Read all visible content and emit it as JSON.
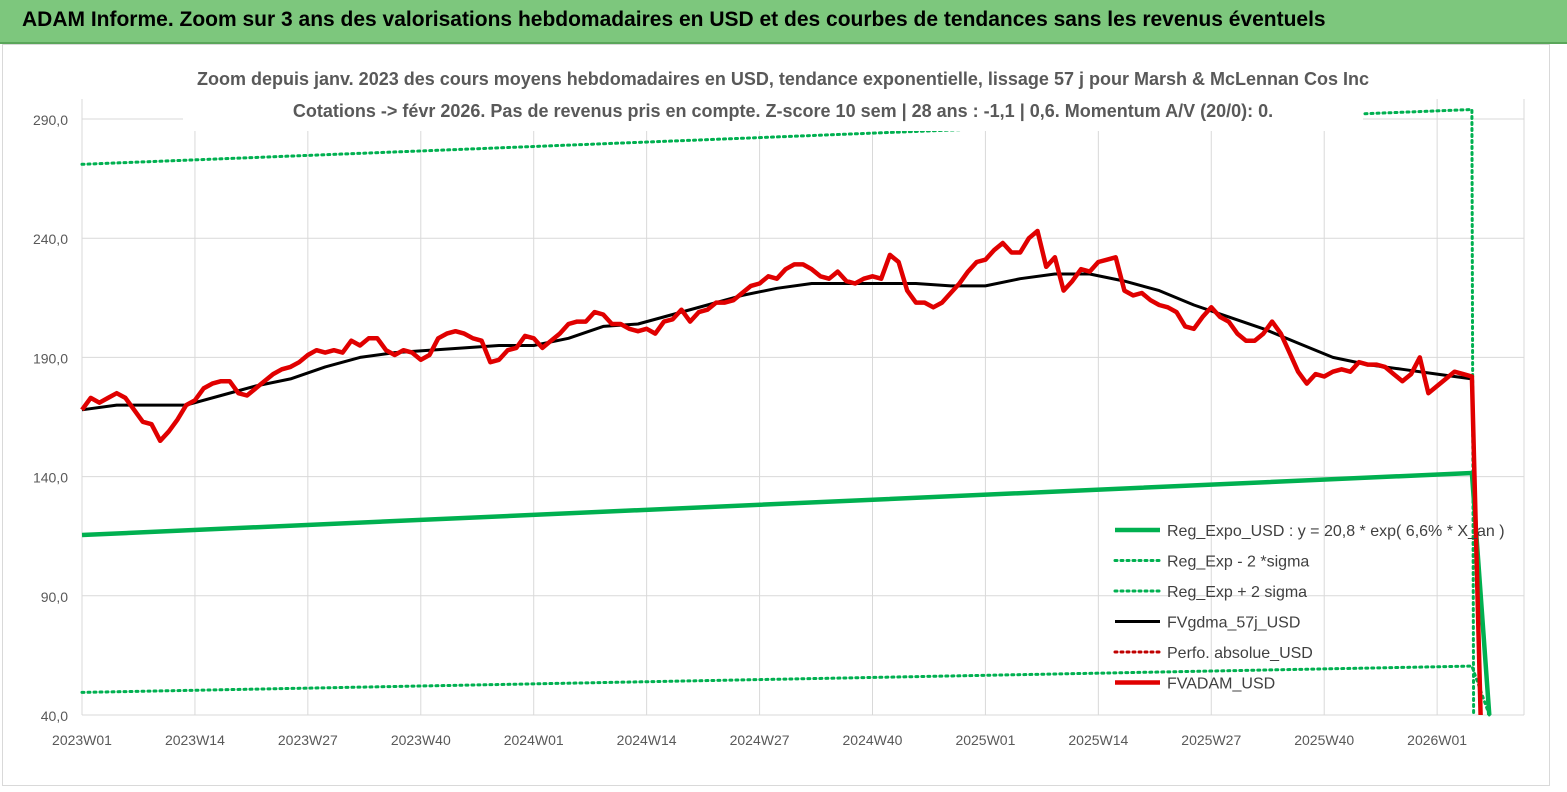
{
  "banner": {
    "title": "ADAM Informe. Zoom sur 3 ans des valorisations hebdomadaires en USD et des courbes de tendances sans les revenus éventuels"
  },
  "colors": {
    "banner_bg": "#7dc77d",
    "reg_expo": "#00b050",
    "fvgdma": "#000000",
    "fvadam": "#e00000",
    "perfo": "#c00000"
  },
  "chart_data": {
    "type": "line",
    "title": "Zoom depuis janv. 2023 des cours moyens hebdomadaires en USD, tendance exponentielle, lissage 57 j pour Marsh & McLennan Cos Inc",
    "subtitle": "Cotations -> févr 2026. Pas de revenus pris en compte. Z-score 10 sem  | 28 ans : -1,1 | 0,6. Momentum A/V (20/0): 0.",
    "xlabel": "",
    "ylabel": "",
    "ylim": [
      40,
      290
    ],
    "yticks": [
      "290,0",
      "240,0",
      "190,0",
      "140,0",
      "90,0",
      "40,0"
    ],
    "xticks": [
      "2023W01",
      "2023W14",
      "2023W27",
      "2023W40",
      "2024W01",
      "2024W14",
      "2024W27",
      "2024W40",
      "2025W01",
      "2025W14",
      "2025W27",
      "2025W40",
      "2026W01"
    ],
    "x_range_weeks": [
      0,
      166
    ],
    "grid": true,
    "legend_position": "bottom-right",
    "series": [
      {
        "name": "Reg_Expo_USD : y = 20,8 * exp( 6,6% *  X_an )",
        "style": "solid-thick",
        "color": "#00b050",
        "x": [
          0,
          160,
          162
        ],
        "y": [
          115.5,
          141.5,
          40
        ]
      },
      {
        "name": "Reg_Exp - 2 *sigma",
        "style": "dotted",
        "color": "#00b050",
        "x": [
          0,
          160,
          162
        ],
        "y": [
          49.5,
          60.5,
          40
        ]
      },
      {
        "name": "Reg_Exp + 2 sigma",
        "style": "dotted",
        "color": "#00b050",
        "x": [
          0,
          160,
          160.2
        ],
        "y": [
          271,
          299,
          40
        ]
      },
      {
        "name": "FVgdma_57j_USD",
        "style": "solid",
        "color": "#000000",
        "x": [
          0,
          4,
          8,
          12,
          16,
          20,
          24,
          28,
          32,
          36,
          40,
          44,
          48,
          52,
          56,
          60,
          64,
          68,
          72,
          76,
          80,
          84,
          88,
          92,
          96,
          100,
          104,
          108,
          112,
          116,
          120,
          124,
          128,
          132,
          136,
          140,
          144,
          148,
          152,
          156,
          160
        ],
        "y": [
          168,
          170,
          170,
          170,
          174,
          178,
          181,
          186,
          190,
          192,
          193,
          194,
          195,
          195,
          198,
          203,
          204,
          208,
          212,
          216,
          219,
          221,
          221,
          221,
          221,
          220,
          220,
          223,
          225,
          225,
          222,
          218,
          212,
          207,
          202,
          196,
          190,
          187,
          185,
          183,
          181
        ]
      },
      {
        "name": "Perfo. absolue_USD",
        "style": "dotted",
        "color": "#c00000",
        "x": [],
        "y": []
      },
      {
        "name": "FVADAM_USD",
        "style": "solid-thick",
        "color": "#e00000",
        "x": [
          0,
          1,
          2,
          3,
          4,
          5,
          6,
          7,
          8,
          9,
          10,
          11,
          12,
          13,
          14,
          15,
          16,
          17,
          18,
          19,
          20,
          21,
          22,
          23,
          24,
          25,
          26,
          27,
          28,
          29,
          30,
          31,
          32,
          33,
          34,
          35,
          36,
          37,
          38,
          39,
          40,
          41,
          42,
          43,
          44,
          45,
          46,
          47,
          48,
          49,
          50,
          51,
          52,
          53,
          54,
          55,
          56,
          57,
          58,
          59,
          60,
          61,
          62,
          63,
          64,
          65,
          66,
          67,
          68,
          69,
          70,
          71,
          72,
          73,
          74,
          75,
          76,
          77,
          78,
          79,
          80,
          81,
          82,
          83,
          84,
          85,
          86,
          87,
          88,
          89,
          90,
          91,
          92,
          93,
          94,
          95,
          96,
          97,
          98,
          99,
          100,
          101,
          102,
          103,
          104,
          105,
          106,
          107,
          108,
          109,
          110,
          111,
          112,
          113,
          114,
          115,
          116,
          117,
          118,
          119,
          120,
          121,
          122,
          123,
          124,
          125,
          126,
          127,
          128,
          129,
          130,
          131,
          132,
          133,
          134,
          135,
          136,
          137,
          138,
          139,
          140,
          141,
          142,
          143,
          144,
          145,
          146,
          147,
          148,
          149,
          150,
          151,
          152,
          153,
          154,
          155,
          156,
          157,
          158,
          159,
          160,
          161
        ],
        "y": [
          168,
          173,
          171,
          173,
          175,
          173,
          168,
          163,
          162,
          155,
          159,
          164,
          170,
          172,
          177,
          179,
          180,
          180,
          175,
          174,
          177,
          180,
          183,
          185,
          186,
          188,
          191,
          193,
          192,
          193,
          192,
          197,
          195,
          198,
          198,
          193,
          191,
          193,
          192,
          189,
          191,
          198,
          200,
          201,
          200,
          198,
          197,
          188,
          189,
          193,
          194,
          199,
          198,
          194,
          197,
          200,
          204,
          205,
          205,
          209,
          208,
          204,
          204,
          202,
          201,
          202,
          200,
          205,
          206,
          210,
          205,
          209,
          210,
          213,
          213,
          214,
          217,
          220,
          221,
          224,
          223,
          227,
          229,
          229,
          227,
          224,
          223,
          226,
          222,
          221,
          223,
          224,
          223,
          233,
          230,
          218,
          213,
          213,
          211,
          213,
          217,
          221,
          226,
          230,
          231,
          235,
          238,
          234,
          234,
          240,
          243,
          228,
          232,
          218,
          222,
          227,
          226,
          230,
          231,
          232,
          218,
          216,
          217,
          214,
          212,
          211,
          209,
          203,
          202,
          207,
          211,
          207,
          205,
          200,
          197,
          197,
          200,
          205,
          200,
          192,
          184,
          179,
          183,
          182,
          184,
          185,
          184,
          188,
          187,
          187,
          186,
          183,
          180,
          183,
          190,
          175,
          178,
          181,
          184,
          183,
          182,
          40
        ]
      }
    ]
  }
}
